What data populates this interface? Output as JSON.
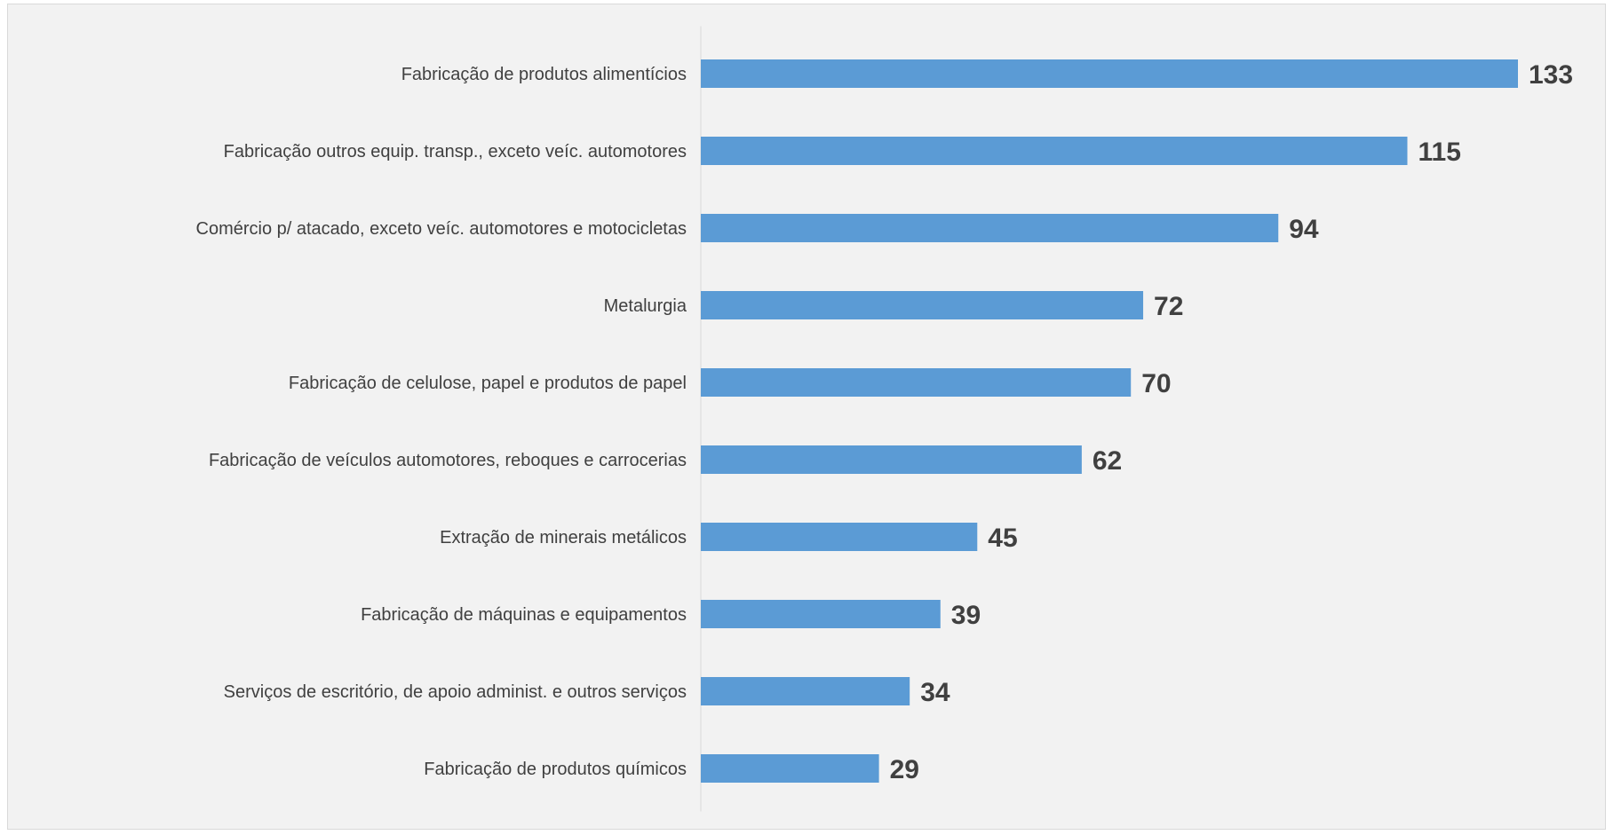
{
  "chart_data": {
    "type": "bar",
    "orientation": "horizontal",
    "title": "",
    "xlabel": "",
    "ylabel": "",
    "categories": [
      "Fabricação de produtos alimentícios",
      "Fabricação outros equip. transp., exceto veíc. automotores",
      "Comércio p/ atacado, exceto veíc. automotores e motocicletas",
      "Metalurgia",
      "Fabricação de celulose, papel e produtos de papel",
      "Fabricação de veículos automotores, reboques e carrocerias",
      "Extração de minerais metálicos",
      "Fabricação de máquinas e equipamentos",
      "Serviços de escritório, de apoio administ. e outros serviços",
      "Fabricação de produtos químicos"
    ],
    "values": [
      133,
      115,
      94,
      72,
      70,
      62,
      45,
      39,
      34,
      29
    ],
    "xlim": [
      0,
      133
    ],
    "grid": false,
    "legend": "none",
    "bar_color": "#5b9bd5",
    "axis_color": "#d9d9d9",
    "label_color": "#404040",
    "background_color": "#f2f2f2"
  }
}
